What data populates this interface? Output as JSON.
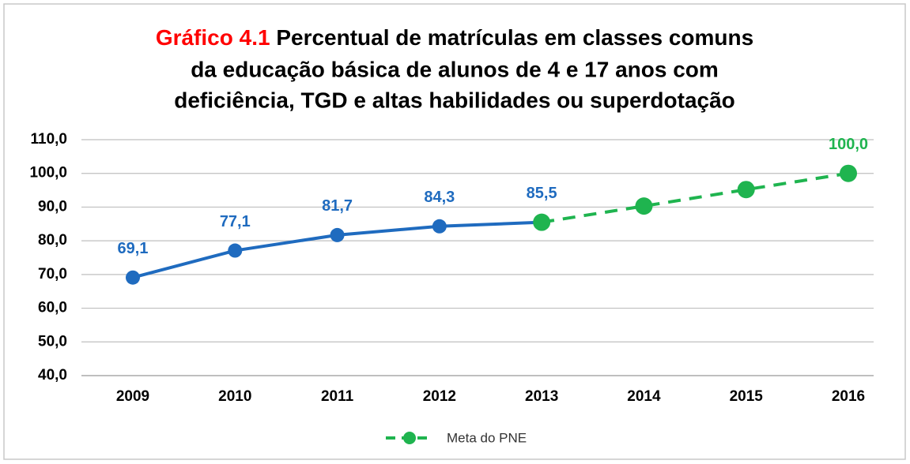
{
  "chart_data": {
    "type": "line",
    "title_number": "Gráfico 4.1",
    "title_lines": [
      "Percentual de matrículas em classes comuns",
      "da educação básica de alunos de 4 e 17 anos com",
      "deficiência, TGD e altas habilidades ou superdotação"
    ],
    "title_number_color": "#ff0000",
    "categories": [
      "2009",
      "2010",
      "2011",
      "2012",
      "2013",
      "2014",
      "2015",
      "2016"
    ],
    "series": [
      {
        "color": "#1f6bbf",
        "dashed": false,
        "values": [
          69.1,
          77.1,
          81.7,
          84.3,
          85.5,
          null,
          null,
          null
        ],
        "value_labels": [
          "69,1",
          "77,1",
          "81,7",
          "84,3",
          "85,5",
          null,
          null,
          null
        ]
      },
      {
        "name": "Meta do PNE",
        "color": "#1fb44f",
        "dashed": true,
        "values": [
          null,
          null,
          null,
          null,
          85.5,
          90.3,
          95.2,
          100
        ],
        "value_labels": [
          null,
          null,
          null,
          null,
          null,
          null,
          null,
          "100,0"
        ]
      }
    ],
    "ylim": [
      40,
      110
    ],
    "yticks": [
      {
        "value": 40,
        "label": "40,0"
      },
      {
        "value": 50,
        "label": "50,0"
      },
      {
        "value": 60,
        "label": "60,0"
      },
      {
        "value": 70,
        "label": "70,0"
      },
      {
        "value": 80,
        "label": "80,0"
      },
      {
        "value": 90,
        "label": "90,0"
      },
      {
        "value": 100,
        "label": "100,0"
      },
      {
        "value": 110,
        "label": "110,0"
      }
    ],
    "grid": true,
    "legend": "bottom"
  }
}
